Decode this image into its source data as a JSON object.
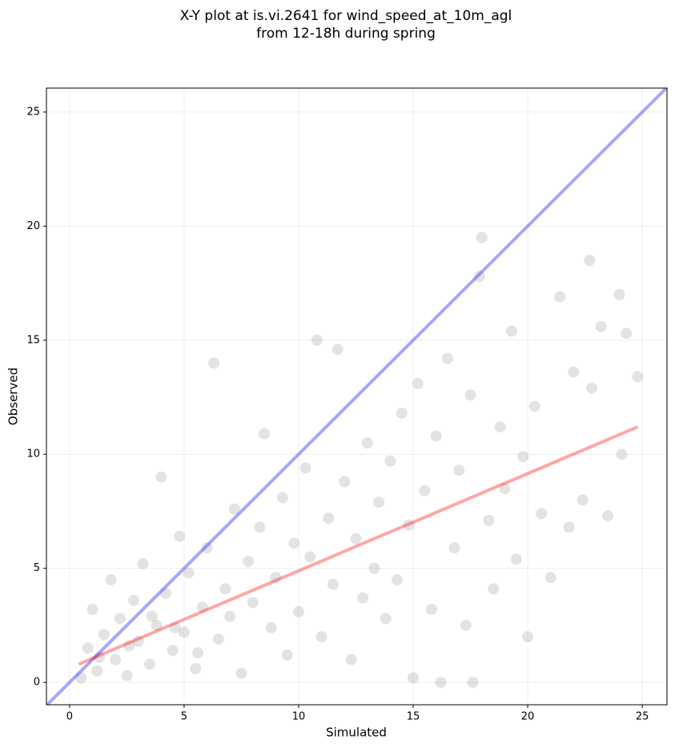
{
  "chart_data": {
    "type": "scatter",
    "title": [
      "X-Y plot at is.vi.2641 for wind_speed_at_10m_agl",
      "from 12-18h during spring"
    ],
    "x_label": "Simulated",
    "y_label": "Observed",
    "xlim": [
      -1.01,
      26.08
    ],
    "ylim": [
      -0.98,
      26.05
    ],
    "xticks": [
      0,
      5,
      10,
      15,
      20,
      25
    ],
    "yticks": [
      0,
      5,
      10,
      15,
      20,
      25
    ],
    "grid": true,
    "series": [
      {
        "type": "scatter",
        "color": "#404040",
        "x": [
          0.5,
          0.8,
          1,
          1.2,
          1.5,
          1.8,
          2,
          2.2,
          2.5,
          2.8,
          3,
          3.2,
          3.5,
          3.8,
          4,
          4.2,
          4.5,
          4.8,
          5,
          5.2,
          5.5,
          5.8,
          6,
          6.3,
          6.5,
          6.8,
          7,
          7.2,
          7.5,
          7.8,
          8,
          8.3,
          8.5,
          8.8,
          9,
          9.3,
          9.5,
          9.8,
          10,
          10.3,
          10.5,
          10.8,
          11,
          11.3,
          11.5,
          11.7,
          12,
          12.3,
          12.5,
          12.8,
          13,
          13.3,
          13.5,
          13.8,
          14,
          14.3,
          14.5,
          14.8,
          15,
          15.2,
          15.5,
          15.8,
          16,
          16.2,
          16.5,
          16.8,
          17,
          17.3,
          17.5,
          17.6,
          17.9,
          18,
          18.3,
          18.5,
          18.8,
          19,
          19.3,
          19.5,
          19.8,
          20,
          20.3,
          20.6,
          21,
          21.4,
          21.8,
          22,
          22.4,
          22.7,
          22.8,
          23.2,
          23.5,
          24,
          24.1,
          24.3,
          24.8,
          1.3,
          2.6,
          3.6,
          4.6,
          5.6
        ],
        "values": [
          0.2,
          1.5,
          3.2,
          0.5,
          2.1,
          4.5,
          1,
          2.8,
          0.3,
          3.6,
          1.8,
          5.2,
          0.8,
          2.5,
          9,
          3.9,
          1.4,
          6.4,
          2.2,
          4.8,
          0.6,
          3.3,
          5.9,
          14,
          1.9,
          4.1,
          2.9,
          7.6,
          0.4,
          5.3,
          3.5,
          6.8,
          10.9,
          2.4,
          4.6,
          8.1,
          1.2,
          6.1,
          3.1,
          9.4,
          5.5,
          15,
          2,
          7.2,
          4.3,
          14.6,
          8.8,
          1,
          6.3,
          3.7,
          10.5,
          5,
          7.9,
          2.8,
          9.7,
          4.5,
          11.8,
          6.9,
          0.2,
          13.1,
          8.4,
          3.2,
          10.8,
          0,
          14.2,
          5.9,
          9.3,
          2.5,
          12.6,
          0,
          17.8,
          19.5,
          7.1,
          4.1,
          11.2,
          8.5,
          15.4,
          5.4,
          9.9,
          2,
          12.1,
          7.4,
          4.6,
          16.9,
          6.8,
          13.6,
          8,
          18.5,
          12.9,
          15.6,
          7.3,
          17,
          10,
          15.3,
          13.4,
          1.1,
          1.6,
          2.9,
          2.4,
          1.3
        ]
      },
      {
        "type": "line",
        "color": "#0000ff",
        "x": [
          -1.01,
          26.08
        ],
        "values": [
          -1.01,
          26.08
        ]
      },
      {
        "type": "line",
        "color": "#ff0000",
        "x": [
          0.4,
          24.8
        ],
        "values": [
          0.8,
          11.2
        ]
      }
    ]
  }
}
